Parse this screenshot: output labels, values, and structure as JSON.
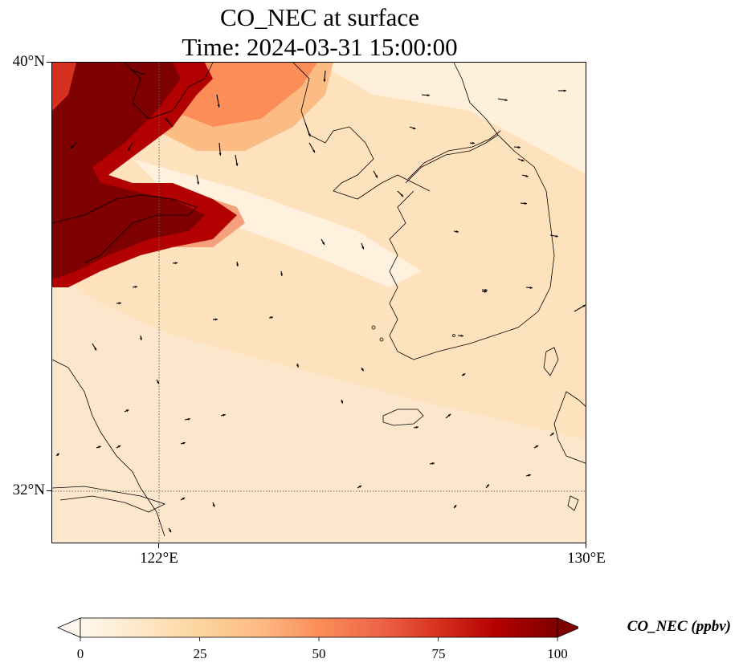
{
  "title": {
    "line1": "CO_NEC at surface",
    "line2": "Time: 2024-03-31 15:00:00"
  },
  "axes": {
    "lat_labels": [
      "40°N",
      "32°N"
    ],
    "lon_labels": [
      "122°E",
      "130°E"
    ],
    "lat_values": [
      40,
      32
    ],
    "lon_values": [
      122,
      130
    ],
    "extent": {
      "lon_min": 120,
      "lon_max": 130,
      "lat_min": 31,
      "lat_max": 40
    },
    "gridlines": "dotted"
  },
  "colorbar": {
    "title": "CO_NEC (ppbv)",
    "ticks": [
      "0",
      "25",
      "50",
      "75",
      "100"
    ],
    "tick_values": [
      0,
      25,
      50,
      75,
      100
    ],
    "range": [
      0,
      100
    ],
    "extend": "both",
    "colormap": "OrRd",
    "colors": [
      "#fff7ec",
      "#fee8c8",
      "#fdd49e",
      "#fdbb84",
      "#fc8d59",
      "#ef6548",
      "#d7301f",
      "#b30000",
      "#7f0000"
    ]
  },
  "features": [
    "coastlines",
    "wind-vectors",
    "concentration-field"
  ]
}
